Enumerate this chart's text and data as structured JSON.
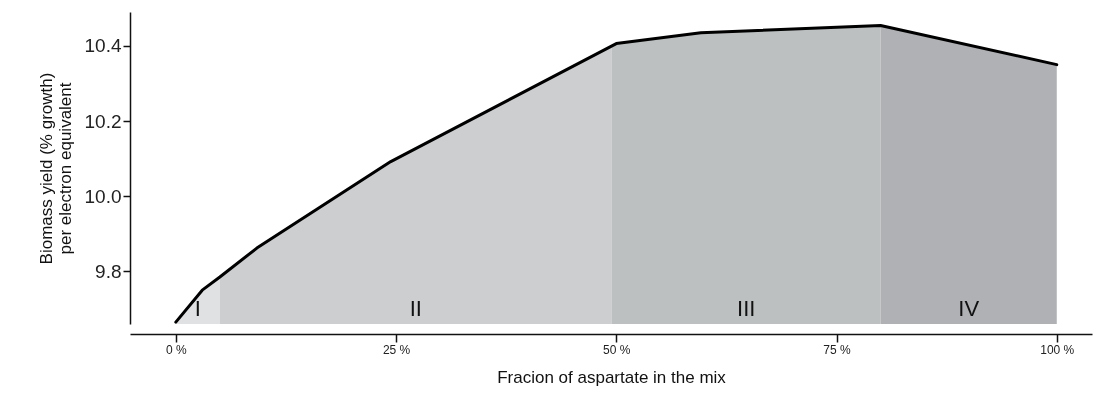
{
  "chart_data": {
    "type": "area",
    "xlabel": "Fracion of aspartate in the mix",
    "ylabel": "Biomass yield (% growth)\nper electron equivalent",
    "series": [
      {
        "color": "#e0e1e3",
        "x": [
          0,
          3,
          5
        ],
        "values": [
          9.665,
          9.75,
          9.785
        ]
      },
      {
        "color": "#ccced0",
        "x": [
          5,
          9.2,
          24.4,
          49.5
        ],
        "values": [
          9.785,
          9.862,
          10.092,
          10.4
        ]
      },
      {
        "color": "#bcc0c0",
        "x": [
          49.5,
          50,
          59.6,
          80
        ],
        "values": [
          10.4,
          10.406,
          10.435,
          10.454
        ]
      },
      {
        "color": "#afb1b5",
        "x": [
          80,
          100
        ],
        "values": [
          10.454,
          10.35
        ]
      },
      {
        "type": "line",
        "color": "#000000",
        "x": [
          0,
          3,
          5,
          9.2,
          24.4,
          50,
          59.6,
          80,
          100
        ],
        "values": [
          9.665,
          9.75,
          9.785,
          9.862,
          10.092,
          10.406,
          10.435,
          10.454,
          10.35
        ]
      }
    ],
    "annotations": [
      "I",
      "II",
      "III",
      "IV"
    ],
    "xlim": [
      -5.2,
      104
    ],
    "xticks": [
      {
        "value": 0,
        "label": "0 %"
      },
      {
        "value": 25,
        "label": "25 %"
      },
      {
        "value": 50,
        "label": "50 %"
      },
      {
        "value": 75,
        "label": "75 %"
      },
      {
        "value": 100,
        "label": "100 %"
      }
    ],
    "ylim": [
      9.66,
      10.49
    ],
    "yticks": [
      9.8,
      {
        "value": 10,
        "label": "10.0"
      },
      10.2,
      10.4
    ],
    "grid": false,
    "marker": "none",
    "line_style": "solid"
  }
}
